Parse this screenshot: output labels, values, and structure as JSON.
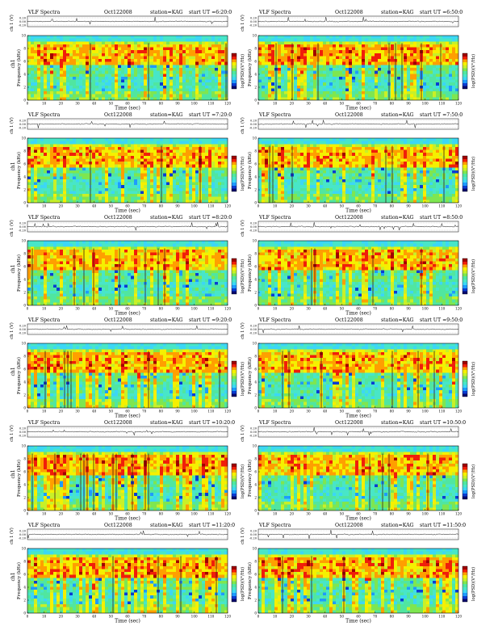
{
  "page": {
    "title": "VLF Spectra — station=KAG — Oct122008"
  },
  "chart_data": [
    {
      "type": "heatmap",
      "title": "VLF Spectra",
      "date": "Oct122008",
      "station": "station=KAG",
      "start_label": "start UT =6:20:0",
      "xlabel": "Time (sec)",
      "ylabel": "Frequency (kHz)",
      "channel_label": "ch 1 (V)",
      "side_label": "ch1",
      "colorbar_label": "log(PSD)(V²/Hz)",
      "x_ticks": [
        0,
        10,
        20,
        30,
        40,
        50,
        60,
        70,
        80,
        90,
        100,
        110,
        120
      ],
      "y_ticks": [
        0,
        2,
        4,
        6,
        8,
        10
      ],
      "xlim": [
        0,
        120
      ],
      "ylim": [
        0,
        10
      ],
      "wave_ticks": [
        "0.20",
        "0.00",
        "-0.20"
      ],
      "wave_ylim": [
        -0.2,
        0.2
      ]
    },
    {
      "type": "heatmap",
      "title": "VLF Spectra",
      "date": "Oct122008",
      "station": "station=KAG",
      "start_label": "start UT =6:50:0",
      "xlabel": "Time (sec)",
      "ylabel": "Frequency (kHz)",
      "channel_label": "ch 1 (V)",
      "side_label": "",
      "colorbar_label": "log(PSD)(V²/Hz)",
      "x_ticks": [
        0,
        10,
        20,
        30,
        40,
        50,
        60,
        70,
        80,
        90,
        100,
        110,
        120
      ],
      "y_ticks": [
        0,
        2,
        4,
        6,
        8,
        10
      ],
      "xlim": [
        0,
        120
      ],
      "ylim": [
        0,
        10
      ],
      "wave_ticks": [
        "0.20",
        "0.00",
        "-0.20"
      ],
      "wave_ylim": [
        -0.2,
        0.2
      ]
    },
    {
      "type": "heatmap",
      "title": "VLF Spectra",
      "date": "Oct122008",
      "station": "station=KAG",
      "start_label": "start UT =7:20:0",
      "xlabel": "Time (sec)",
      "ylabel": "Frequency (kHz)",
      "channel_label": "ch 1 (V)",
      "side_label": "ch1",
      "colorbar_label": "log(PSD)(V²/Hz)",
      "x_ticks": [
        0,
        10,
        20,
        30,
        40,
        50,
        60,
        70,
        80,
        90,
        100,
        110,
        120
      ],
      "y_ticks": [
        0,
        2,
        4,
        6,
        8,
        10
      ],
      "xlim": [
        0,
        120
      ],
      "ylim": [
        0,
        10
      ],
      "wave_ticks": [
        "0.20",
        "0.00",
        "-0.20"
      ],
      "wave_ylim": [
        -0.2,
        0.2
      ]
    },
    {
      "type": "heatmap",
      "title": "VLF Spectra",
      "date": "Oct122008",
      "station": "station=KAG",
      "start_label": "start UT =7:50:0",
      "xlabel": "Time (sec)",
      "ylabel": "Frequency (kHz)",
      "channel_label": "ch 1 (V)",
      "side_label": "",
      "colorbar_label": "log(PSD)(V²/Hz)",
      "x_ticks": [
        0,
        10,
        20,
        30,
        40,
        50,
        60,
        70,
        80,
        90,
        100,
        110,
        120
      ],
      "y_ticks": [
        0,
        2,
        4,
        6,
        8,
        10
      ],
      "xlim": [
        0,
        120
      ],
      "ylim": [
        0,
        10
      ],
      "wave_ticks": [
        "0.20",
        "0.00",
        "-0.20"
      ],
      "wave_ylim": [
        -0.2,
        0.2
      ]
    },
    {
      "type": "heatmap",
      "title": "VLF Spectra",
      "date": "Oct122008",
      "station": "station=KAG",
      "start_label": "start UT =8:20:0",
      "xlabel": "Time (sec)",
      "ylabel": "Frequency (kHz)",
      "channel_label": "ch 1 (V)",
      "side_label": "ch1",
      "colorbar_label": "log(PSD)(V²/Hz)",
      "x_ticks": [
        0,
        10,
        20,
        30,
        40,
        50,
        60,
        70,
        80,
        90,
        100,
        110,
        120
      ],
      "y_ticks": [
        0,
        2,
        4,
        6,
        8,
        10
      ],
      "xlim": [
        0,
        120
      ],
      "ylim": [
        0,
        10
      ],
      "wave_ticks": [
        "0.20",
        "0.00",
        "-0.20"
      ],
      "wave_ylim": [
        -0.2,
        0.2
      ]
    },
    {
      "type": "heatmap",
      "title": "VLF Spectra",
      "date": "Oct122008",
      "station": "station=KAG",
      "start_label": "start UT =8:50:0",
      "xlabel": "Time (sec)",
      "ylabel": "Frequency (kHz)",
      "channel_label": "ch 1 (V)",
      "side_label": "",
      "colorbar_label": "log(PSD)(V²/Hz)",
      "x_ticks": [
        0,
        10,
        20,
        30,
        40,
        50,
        60,
        70,
        80,
        90,
        100,
        110,
        120
      ],
      "y_ticks": [
        0,
        2,
        4,
        6,
        8,
        10
      ],
      "xlim": [
        0,
        120
      ],
      "ylim": [
        0,
        10
      ],
      "wave_ticks": [
        "0.20",
        "0.00",
        "-0.20"
      ],
      "wave_ylim": [
        -0.2,
        0.2
      ]
    },
    {
      "type": "heatmap",
      "title": "VLF Spectra",
      "date": "Oct122008",
      "station": "station=KAG",
      "start_label": "start UT =9:20:0",
      "xlabel": "Time (sec)",
      "ylabel": "Frequency (kHz)",
      "channel_label": "ch 1 (V)",
      "side_label": "ch1",
      "colorbar_label": "log(PSD)(V²/Hz)",
      "x_ticks": [
        0,
        10,
        20,
        30,
        40,
        50,
        60,
        70,
        80,
        90,
        100,
        110,
        120
      ],
      "y_ticks": [
        0,
        2,
        4,
        6,
        8,
        10
      ],
      "xlim": [
        0,
        120
      ],
      "ylim": [
        0,
        10
      ],
      "wave_ticks": [
        "0.20",
        "0.00",
        "-0.20"
      ],
      "wave_ylim": [
        -0.2,
        0.2
      ]
    },
    {
      "type": "heatmap",
      "title": "VLF Spectra",
      "date": "Oct122008",
      "station": "station=KAG",
      "start_label": "start UT =9:50:0",
      "xlabel": "Time (sec)",
      "ylabel": "Frequency (kHz)",
      "channel_label": "ch 1 (V)",
      "side_label": "",
      "colorbar_label": "log(PSD)(V²/Hz)",
      "x_ticks": [
        0,
        10,
        20,
        30,
        40,
        50,
        60,
        70,
        80,
        90,
        100,
        110,
        120
      ],
      "y_ticks": [
        0,
        2,
        4,
        6,
        8,
        10
      ],
      "xlim": [
        0,
        120
      ],
      "ylim": [
        0,
        10
      ],
      "wave_ticks": [
        "0.20",
        "0.00",
        "-0.20"
      ],
      "wave_ylim": [
        -0.2,
        0.2
      ]
    },
    {
      "type": "heatmap",
      "title": "VLF Spectra",
      "date": "Oct122008",
      "station": "station=KAG",
      "start_label": "start UT =10:20:0",
      "xlabel": "Time (sec)",
      "ylabel": "Frequency (kHz)",
      "channel_label": "ch 1 (V)",
      "side_label": "ch1",
      "colorbar_label": "log(PSD)(V²/Hz)",
      "x_ticks": [
        0,
        10,
        20,
        30,
        40,
        50,
        60,
        70,
        80,
        90,
        100,
        110,
        120
      ],
      "y_ticks": [
        0,
        2,
        4,
        6,
        8,
        10
      ],
      "xlim": [
        0,
        120
      ],
      "ylim": [
        0,
        10
      ],
      "wave_ticks": [
        "0.20",
        "0.00",
        "-0.20"
      ],
      "wave_ylim": [
        -0.2,
        0.2
      ]
    },
    {
      "type": "heatmap",
      "title": "VLF Spectra",
      "date": "Oct122008",
      "station": "station=KAG",
      "start_label": "start UT =10:50:0",
      "xlabel": "Time (sec)",
      "ylabel": "Frequency (kHz)",
      "channel_label": "ch 1 (V)",
      "side_label": "",
      "colorbar_label": "log(PSD)(V²/Hz)",
      "x_ticks": [
        0,
        10,
        20,
        30,
        40,
        50,
        60,
        70,
        80,
        90,
        100,
        110,
        120
      ],
      "y_ticks": [
        0,
        2,
        4,
        6,
        8,
        10
      ],
      "xlim": [
        0,
        120
      ],
      "ylim": [
        0,
        10
      ],
      "wave_ticks": [
        "0.20",
        "0.00",
        "-0.20"
      ],
      "wave_ylim": [
        -0.2,
        0.2
      ]
    },
    {
      "type": "heatmap",
      "title": "VLF Spectra",
      "date": "Oct122008",
      "station": "station=KAG",
      "start_label": "start UT =11:20:0",
      "xlabel": "Time (sec)",
      "ylabel": "Frequency (kHz)",
      "channel_label": "ch 1 (V)",
      "side_label": "ch1",
      "colorbar_label": "log(PSD)(V²/Hz)",
      "x_ticks": [
        0,
        10,
        20,
        30,
        40,
        50,
        60,
        70,
        80,
        90,
        100,
        110,
        120
      ],
      "y_ticks": [
        0,
        2,
        4,
        6,
        8,
        10
      ],
      "xlim": [
        0,
        120
      ],
      "ylim": [
        0,
        10
      ],
      "wave_ticks": [
        "0.20",
        "0.00",
        "-0.20"
      ],
      "wave_ylim": [
        -0.2,
        0.2
      ]
    },
    {
      "type": "heatmap",
      "title": "VLF Spectra",
      "date": "Oct122008",
      "station": "station=KAG",
      "start_label": "start UT =11:50:0",
      "xlabel": "Time (sec)",
      "ylabel": "Frequency (kHz)",
      "channel_label": "ch 1 (V)",
      "side_label": "",
      "colorbar_label": "log(PSD)(V²/Hz)",
      "x_ticks": [
        0,
        10,
        20,
        30,
        40,
        50,
        60,
        70,
        80,
        90,
        100,
        110,
        120
      ],
      "y_ticks": [
        0,
        2,
        4,
        6,
        8,
        10
      ],
      "xlim": [
        0,
        120
      ],
      "ylim": [
        0,
        10
      ],
      "wave_ticks": [
        "0.20",
        "0.00",
        "-0.20"
      ],
      "wave_ylim": [
        -0.2,
        0.2
      ]
    }
  ],
  "colors": {
    "colormap": [
      "#08086e",
      "#0a3cd2",
      "#1e9bff",
      "#3cd7f5",
      "#48e6c8",
      "#50e6a0",
      "#7ee650",
      "#c8f028",
      "#f5f000",
      "#ff9f00",
      "#f01e0a",
      "#a00000"
    ],
    "trace": "#000000",
    "frame": "#000000"
  }
}
